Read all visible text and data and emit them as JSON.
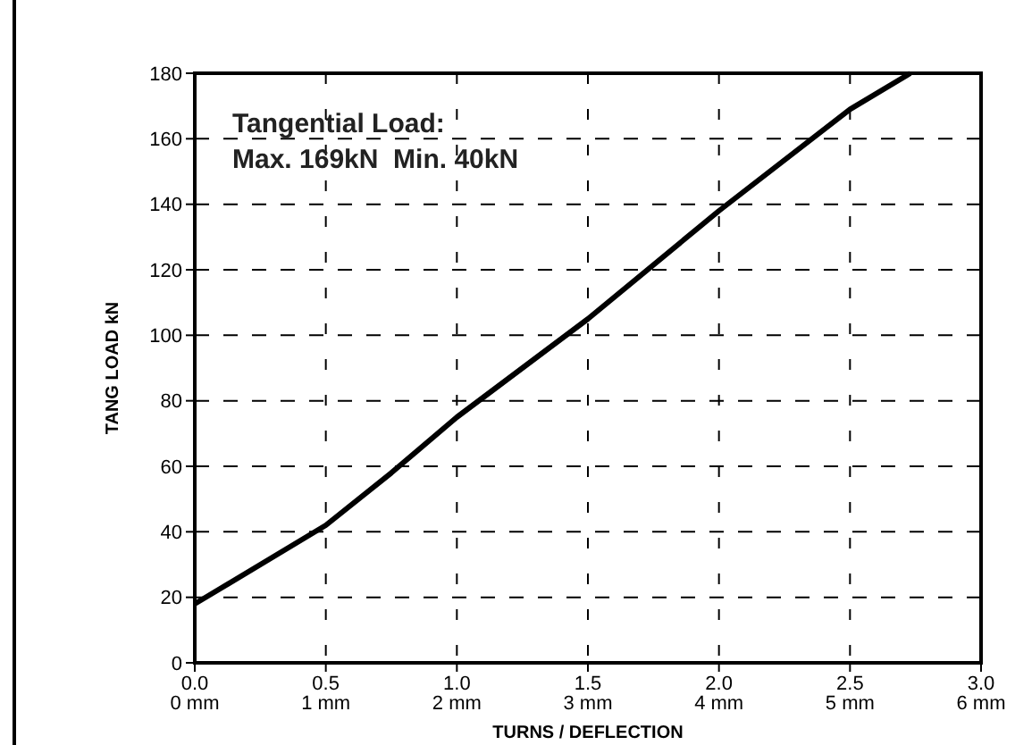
{
  "chart_data": {
    "type": "line",
    "xlabel": "TURNS / DEFLECTION",
    "ylabel": "TANG LOAD kN",
    "annotations": [
      "Tangential Load:\nMax. 169kN  Min. 40kN"
    ],
    "series": [
      {
        "color": "#000000",
        "x": [
          0,
          0.5,
          0.75,
          1.0,
          1.5,
          2.0,
          2.5,
          2.73
        ],
        "values": [
          18,
          42,
          58,
          75,
          105,
          138,
          169,
          180
        ]
      }
    ],
    "xlim": [
      0,
      3
    ],
    "ylim": [
      0,
      180
    ],
    "xticks": [
      {
        "value": 0,
        "label": "0.0"
      },
      0.5,
      {
        "value": 1,
        "label": "1.0"
      },
      1.5,
      {
        "value": 2,
        "label": "2.0"
      },
      2.5,
      {
        "value": 3,
        "label": "3.0"
      }
    ],
    "x2lim": [
      0,
      6
    ],
    "x2ticks": [
      {
        "value": 0,
        "label": "0 mm"
      },
      {
        "value": 1,
        "label": "1 mm"
      },
      {
        "value": 2,
        "label": "2 mm"
      },
      {
        "value": 3,
        "label": "3 mm"
      },
      {
        "value": 4,
        "label": "4 mm"
      },
      {
        "value": 5,
        "label": "5 mm"
      },
      {
        "value": 6,
        "label": "6 mm"
      }
    ],
    "yticks": [
      0,
      20,
      40,
      60,
      80,
      100,
      120,
      140,
      160,
      180
    ],
    "grid": true,
    "marker": "none",
    "line_style": "solid"
  }
}
